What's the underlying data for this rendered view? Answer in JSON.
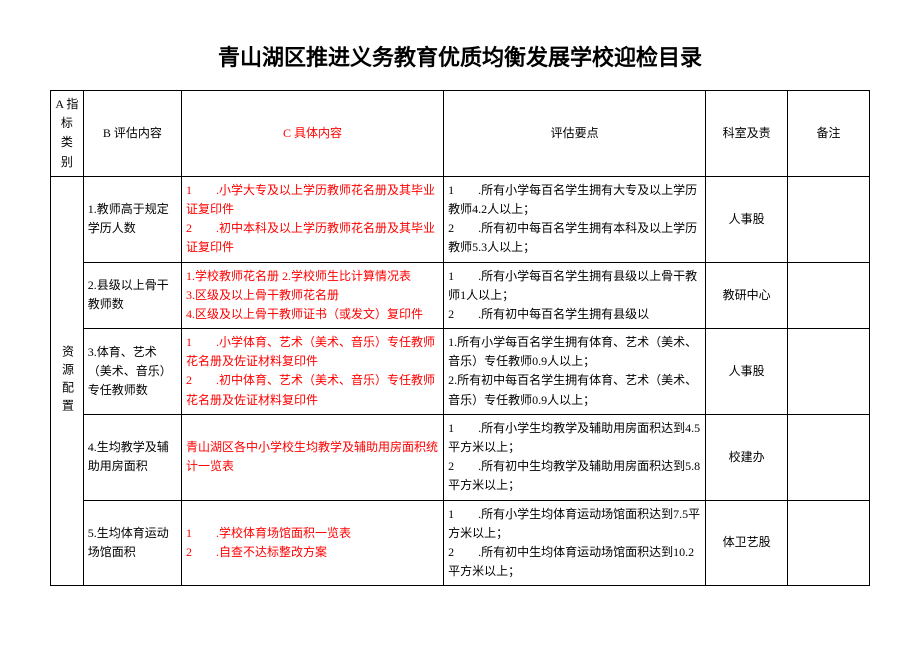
{
  "title": "青山湖区推进义务教育优质均衡发展学校迎检目录",
  "headers": {
    "a": "A 指标类别",
    "b": "B 评估内容",
    "c": "C 具体内容",
    "d": "评估要点",
    "e": "科室及责",
    "f": "备注"
  },
  "colors": {
    "red": "#ff0000",
    "text": "#000000",
    "border": "#000000",
    "bg": "#ffffff"
  },
  "category": "资源配置",
  "rows": [
    {
      "b": "1.教师高于规定学历人数",
      "c": "1　　.小学大专及以上学历教师花名册及其毕业证复印件\n2　　.初中本科及以上学历教师花名册及其毕业证复印件",
      "d": "1　　.所有小学每百名学生拥有大专及以上学历教师4.2人以上；\n2　　.所有初中每百名学生拥有本科及以上学历教师5.3人以上；",
      "e": "人事股",
      "f": ""
    },
    {
      "b": "2.县级以上骨干教师数",
      "c": "1.学校教师花名册 2.学校师生比计算情况表\n3.区级及以上骨干教师花名册\n4.区级及以上骨干教师证书（或发文）复印件",
      "d": "1　　.所有小学每百名学生拥有县级以上骨干教师1人以上；\n2　　.所有初中每百名学生拥有县级以",
      "e": "教研中心",
      "f": ""
    },
    {
      "b": "3.体育、艺术（美术、音乐）专任教师数",
      "c": "1　　.小学体育、艺术（美术、音乐）专任教师花名册及佐证材料复印件\n2　　.初中体育、艺术（美术、音乐）专任教师花名册及佐证材料复印件",
      "d": "1.所有小学每百名学生拥有体育、艺术（美术、音乐）专任教师0.9人以上；\n2.所有初中每百名学生拥有体育、艺术（美术、音乐）专任教师0.9人以上；",
      "e": "人事股",
      "f": ""
    },
    {
      "b": "4.生均教学及辅助用房面积",
      "c": "青山湖区各中小学校生均教学及辅助用房面积统计一览表",
      "d": "1　　.所有小学生均教学及辅助用房面积达到4.5平方米以上；\n2　　.所有初中生均教学及辅助用房面积达到5.8平方米以上；",
      "e": "校建办",
      "f": ""
    },
    {
      "b": "5.生均体育运动场馆面积",
      "c": "1　　.学校体育场馆面积一览表\n2　　.自查不达标整改方案",
      "d": "1　　.所有小学生均体育运动场馆面积达到7.5平方米以上；\n2　　.所有初中生均体育运动场馆面积达到10.2平方米以上；",
      "e": "体卫艺股",
      "f": ""
    }
  ]
}
